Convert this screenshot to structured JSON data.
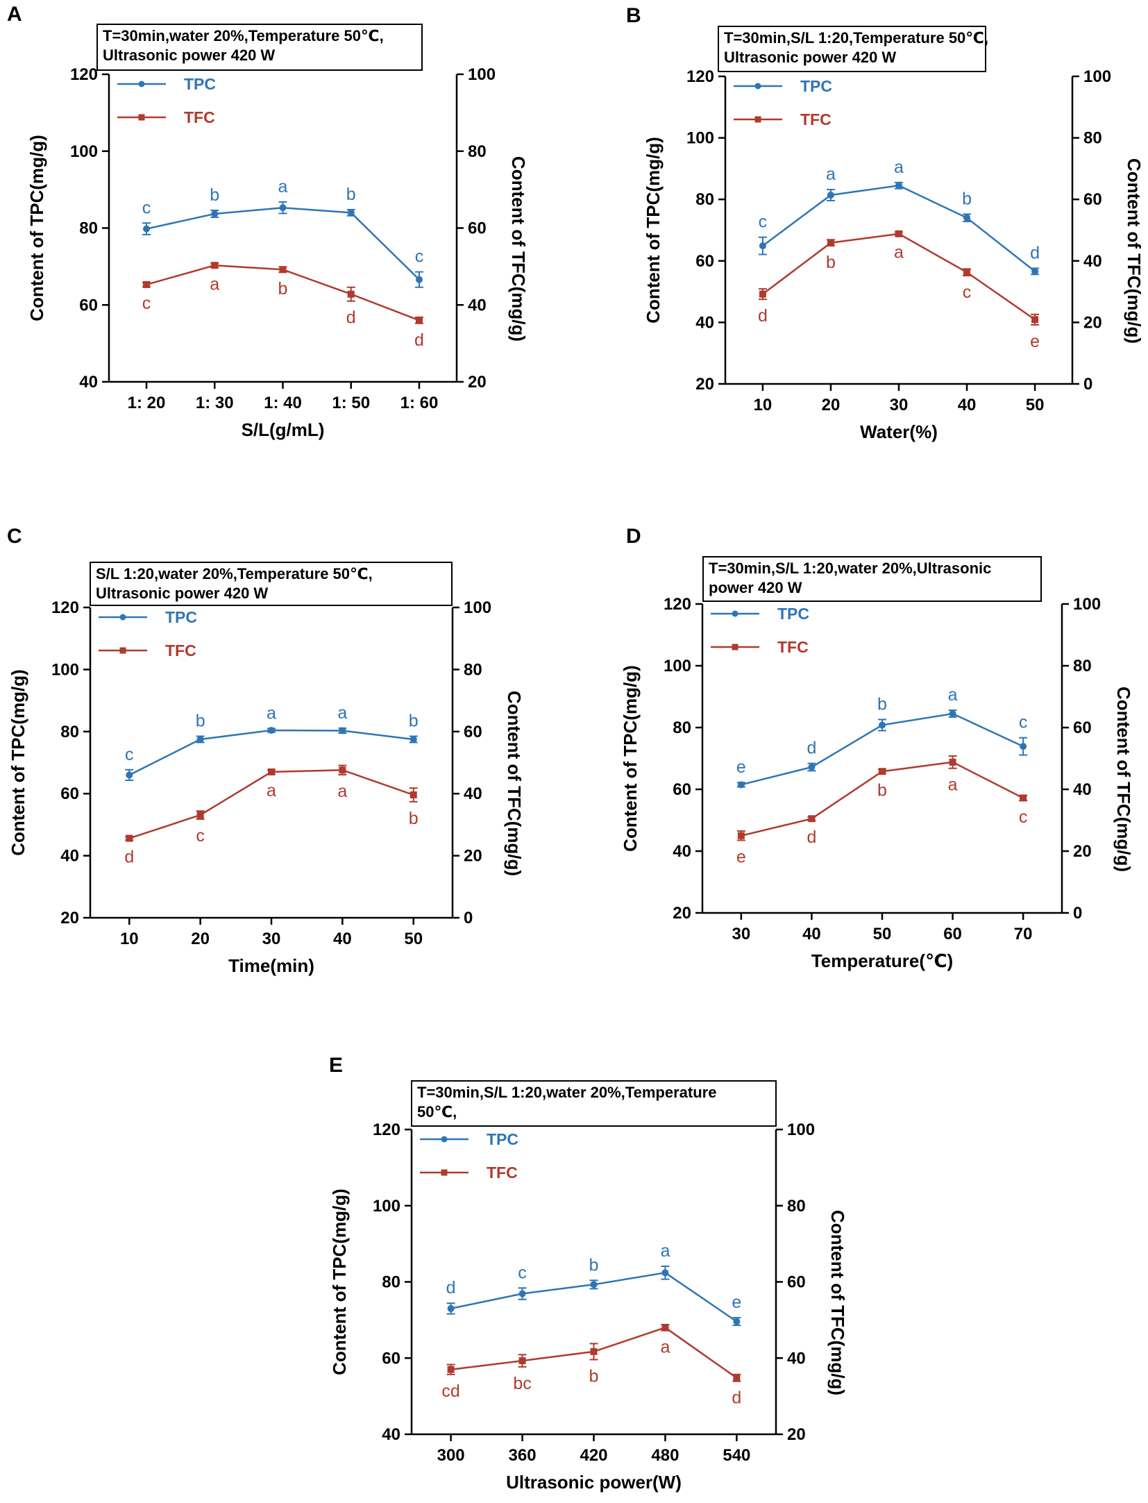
{
  "colors": {
    "tpc": "#2e75b6",
    "tfc": "#b03a2e",
    "axis": "#000000"
  },
  "chart_data": [
    {
      "type": "line",
      "panel": "A",
      "condition_lines": [
        "T=30min,water 20%,Temperature 50℃,",
        "Ultrasonic power 420 W"
      ],
      "xlabel": "S/L(g/mL)",
      "categories": [
        "1: 20",
        "1: 30",
        "1: 40",
        "1: 50",
        "1: 60"
      ],
      "ylabel_left": "Content of TPC(mg/g)",
      "ylabel_right": "Content of TFC(mg/g)",
      "ylim_left": [
        40,
        120
      ],
      "yticks_left": [
        40,
        60,
        80,
        100,
        120
      ],
      "ylim_right": [
        20,
        100
      ],
      "yticks_right": [
        20,
        40,
        60,
        80,
        100
      ],
      "legend": [
        "TPC",
        "TFC"
      ],
      "series": [
        {
          "name": "TPC",
          "axis": "left",
          "values": [
            79.8,
            83.7,
            85.3,
            84.0,
            66.6
          ],
          "errors": [
            1.5,
            0.9,
            1.5,
            0.8,
            2.0
          ],
          "sig": [
            "c",
            "b",
            "a",
            "b",
            "c"
          ],
          "sig_pos": "above"
        },
        {
          "name": "TFC",
          "axis": "right",
          "values": [
            45.3,
            50.3,
            49.2,
            42.8,
            36.0
          ],
          "errors": [
            0.6,
            0.6,
            0.7,
            1.8,
            0.8
          ],
          "sig": [
            "c",
            "a",
            "b",
            "d",
            "d"
          ],
          "sig_pos": "below"
        }
      ]
    },
    {
      "type": "line",
      "panel": "B",
      "condition_lines": [
        "T=30min,S/L 1:20,Temperature 50℃,",
        "Ultrasonic power 420 W"
      ],
      "xlabel": "Water(%)",
      "categories": [
        "10",
        "20",
        "30",
        "40",
        "50"
      ],
      "ylabel_left": "Content of TPC(mg/g)",
      "ylabel_right": "Content of TFC(mg/g)",
      "ylim_left": [
        20,
        120
      ],
      "yticks_left": [
        20,
        40,
        60,
        80,
        100,
        120
      ],
      "ylim_right": [
        0,
        100
      ],
      "yticks_right": [
        0,
        20,
        40,
        60,
        80,
        100
      ],
      "legend": [
        "TPC",
        "TFC"
      ],
      "series": [
        {
          "name": "TPC",
          "axis": "left",
          "values": [
            64.9,
            81.4,
            84.5,
            74.0,
            56.6
          ],
          "errors": [
            2.8,
            1.8,
            1.0,
            1.2,
            1.0
          ],
          "sig": [
            "c",
            "a",
            "a",
            "b",
            "d"
          ],
          "sig_pos": "above"
        },
        {
          "name": "TFC",
          "axis": "right",
          "values": [
            29.2,
            45.9,
            48.8,
            36.3,
            20.9
          ],
          "errors": [
            1.7,
            1.0,
            0.6,
            1.1,
            1.7
          ],
          "sig": [
            "d",
            "b",
            "a",
            "c",
            "e"
          ],
          "sig_pos": "below"
        }
      ]
    },
    {
      "type": "line",
      "panel": "C",
      "condition_lines": [
        "S/L 1:20,water 20%,Temperature 50℃,",
        "Ultrasonic power 420 W"
      ],
      "xlabel": "Time(min)",
      "categories": [
        "10",
        "20",
        "30",
        "40",
        "50"
      ],
      "ylabel_left": "Content of TPC(mg/g)",
      "ylabel_right": "Content of TFC(mg/g)",
      "ylim_left": [
        20,
        120
      ],
      "yticks_left": [
        20,
        40,
        60,
        80,
        100,
        120
      ],
      "ylim_right": [
        0,
        100
      ],
      "yticks_right": [
        0,
        20,
        40,
        60,
        80,
        100
      ],
      "legend": [
        "TPC",
        "TFC"
      ],
      "series": [
        {
          "name": "TPC",
          "axis": "left",
          "values": [
            66.0,
            77.5,
            80.4,
            80.3,
            77.5
          ],
          "errors": [
            1.7,
            1.0,
            0.6,
            0.8,
            1.0
          ],
          "sig": [
            "c",
            "b",
            "a",
            "a",
            "b"
          ],
          "sig_pos": "above"
        },
        {
          "name": "TFC",
          "axis": "right",
          "values": [
            25.6,
            33.1,
            47.0,
            47.6,
            39.6
          ],
          "errors": [
            0.6,
            1.3,
            0.7,
            1.5,
            2.2
          ],
          "sig": [
            "d",
            "c",
            "a",
            "a",
            "b"
          ],
          "sig_pos": "below"
        }
      ]
    },
    {
      "type": "line",
      "panel": "D",
      "condition_lines": [
        "T=30min,S/L 1:20,water 20%,Ultrasonic",
        "power 420 W"
      ],
      "xlabel": "Temperature(℃)",
      "categories": [
        "30",
        "40",
        "50",
        "60",
        "70"
      ],
      "ylabel_left": "Content of TPC(mg/g)",
      "ylabel_right": "Content of TFC(mg/g)",
      "ylim_left": [
        20,
        120
      ],
      "yticks_left": [
        20,
        40,
        60,
        80,
        100,
        120
      ],
      "ylim_right": [
        0,
        100
      ],
      "yticks_right": [
        0,
        20,
        40,
        60,
        80,
        100
      ],
      "legend": [
        "TPC",
        "TFC"
      ],
      "series": [
        {
          "name": "TPC",
          "axis": "left",
          "values": [
            61.5,
            67.2,
            80.8,
            84.5,
            73.9
          ],
          "errors": [
            0.7,
            1.2,
            1.8,
            1.1,
            2.8
          ],
          "sig": [
            "e",
            "d",
            "b",
            "a",
            "c"
          ],
          "sig_pos": "above"
        },
        {
          "name": "TFC",
          "axis": "right",
          "values": [
            25.0,
            30.5,
            45.8,
            48.8,
            37.2
          ],
          "errors": [
            1.5,
            0.6,
            0.7,
            2.0,
            0.8
          ],
          "sig": [
            "e",
            "d",
            "b",
            "a",
            "c"
          ],
          "sig_pos": "below"
        }
      ]
    },
    {
      "type": "line",
      "panel": "E",
      "condition_lines": [
        "T=30min,S/L 1:20,water 20%,Temperature",
        "50℃,"
      ],
      "xlabel": "Ultrasonic power(W)",
      "categories": [
        "300",
        "360",
        "420",
        "480",
        "540"
      ],
      "ylabel_left": "Content of TPC(mg/g)",
      "ylabel_right": "Content of TFC(mg/g)",
      "ylim_left": [
        40,
        120
      ],
      "yticks_left": [
        40,
        60,
        80,
        100,
        120
      ],
      "ylim_right": [
        20,
        100
      ],
      "yticks_right": [
        20,
        40,
        60,
        80,
        100
      ],
      "legend": [
        "TPC",
        "TFC"
      ],
      "series": [
        {
          "name": "TPC",
          "axis": "left",
          "values": [
            73.0,
            76.9,
            79.3,
            82.4,
            69.6
          ],
          "errors": [
            1.4,
            1.5,
            1.1,
            1.7,
            1.0
          ],
          "sig": [
            "d",
            "c",
            "b",
            "a",
            "e"
          ],
          "sig_pos": "above"
        },
        {
          "name": "TFC",
          "axis": "right",
          "values": [
            37.0,
            39.3,
            41.7,
            48.0,
            34.8
          ],
          "errors": [
            1.3,
            1.6,
            2.1,
            0.8,
            0.9
          ],
          "sig": [
            "cd",
            "bc",
            "b",
            "a",
            "d"
          ],
          "sig_pos": "below"
        }
      ]
    }
  ]
}
